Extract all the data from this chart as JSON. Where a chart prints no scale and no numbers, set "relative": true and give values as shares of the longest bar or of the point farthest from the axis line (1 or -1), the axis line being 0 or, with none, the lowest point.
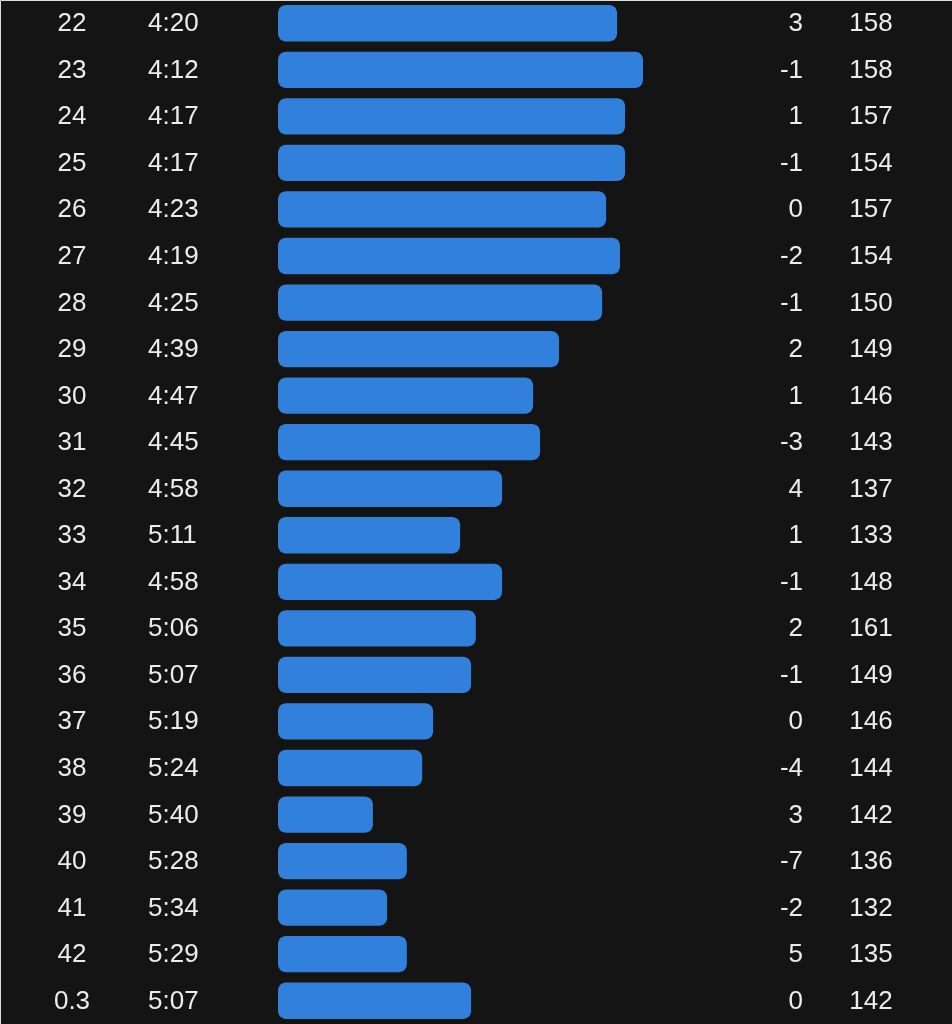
{
  "chart_data": {
    "type": "bar",
    "orientation": "horizontal",
    "relative": true,
    "color": "#3180dc",
    "categories": [
      "22",
      "23",
      "24",
      "25",
      "26",
      "27",
      "28",
      "29",
      "30",
      "31",
      "32",
      "33",
      "34",
      "35",
      "36",
      "37",
      "38",
      "39",
      "40",
      "41",
      "42",
      "0.3"
    ],
    "values": [
      0.929,
      1,
      0.951,
      0.951,
      0.899,
      0.937,
      0.888,
      0.77,
      0.699,
      0.718,
      0.614,
      0.499,
      0.614,
      0.542,
      0.529,
      0.425,
      0.395,
      0.26,
      0.353,
      0.299,
      0.353,
      0.529
    ],
    "annotations": [
      "4:20",
      "3",
      "158",
      "4:12",
      "-1",
      "158",
      "4:17",
      "1",
      "157",
      "4:17",
      "-1",
      "154",
      "4:23",
      "0",
      "157",
      "4:19",
      "-2",
      "154",
      "4:25",
      "-1",
      "150",
      "4:39",
      "2",
      "149",
      "4:47",
      "1",
      "146",
      "4:45",
      "-3",
      "143",
      "4:58",
      "4",
      "137",
      "5:11",
      "1",
      "133",
      "4:58",
      "-1",
      "148",
      "5:06",
      "2",
      "161",
      "5:07",
      "-1",
      "149",
      "5:19",
      "0",
      "146",
      "5:24",
      "-4",
      "144",
      "5:40",
      "3",
      "142",
      "5:28",
      "-7",
      "136",
      "5:34",
      "-2",
      "132",
      "5:29",
      "5",
      "135",
      "5:07",
      "0",
      "142"
    ]
  }
}
